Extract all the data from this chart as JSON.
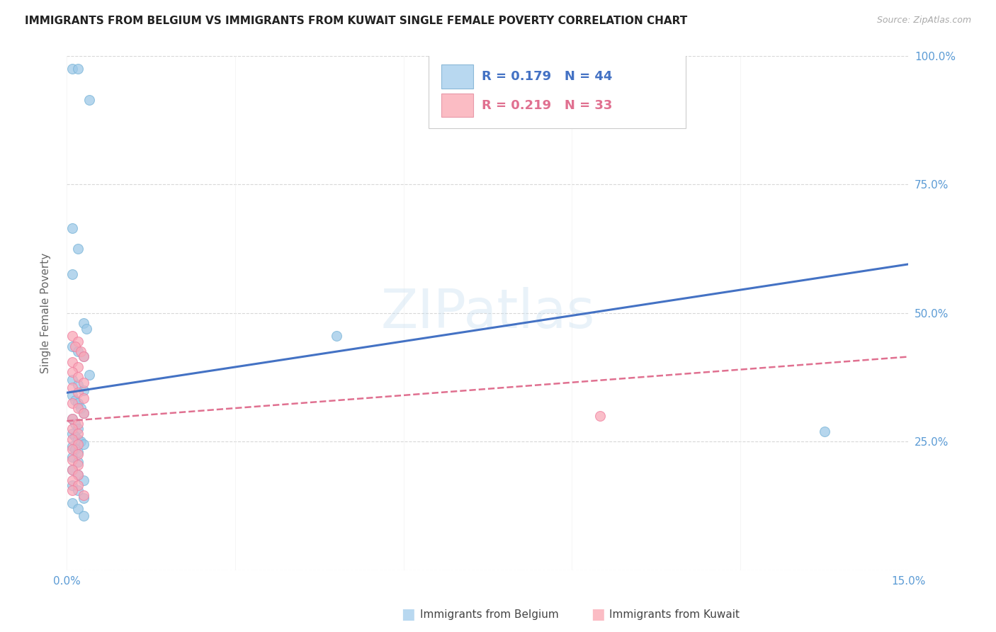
{
  "title": "IMMIGRANTS FROM BELGIUM VS IMMIGRANTS FROM KUWAIT SINGLE FEMALE POVERTY CORRELATION CHART",
  "source": "Source: ZipAtlas.com",
  "ylabel": "Single Female Poverty",
  "xlim": [
    0.0,
    0.15
  ],
  "ylim": [
    0.0,
    1.0
  ],
  "xticks": [
    0.0,
    0.03,
    0.06,
    0.09,
    0.12,
    0.15
  ],
  "xticklabels": [
    "0.0%",
    "",
    "",
    "",
    "",
    "15.0%"
  ],
  "yticks": [
    0.0,
    0.25,
    0.5,
    0.75,
    1.0
  ],
  "yticklabels_right": [
    "",
    "25.0%",
    "50.0%",
    "75.0%",
    "100.0%"
  ],
  "belgium_color": "#9ec9e8",
  "kuwait_color": "#f9a8b8",
  "belgium_edge": "#7ab5d8",
  "kuwait_edge": "#f080a0",
  "belgium_line_color": "#4472c4",
  "kuwait_line_color": "#e07090",
  "belgium_R": "0.179",
  "belgium_N": "44",
  "kuwait_R": "0.219",
  "kuwait_N": "33",
  "watermark": "ZIPatlas",
  "belgium_x": [
    0.001,
    0.002,
    0.004,
    0.001,
    0.002,
    0.001,
    0.003,
    0.0035,
    0.001,
    0.002,
    0.003,
    0.004,
    0.001,
    0.002,
    0.003,
    0.001,
    0.0015,
    0.002,
    0.0025,
    0.003,
    0.001,
    0.0015,
    0.002,
    0.001,
    0.0015,
    0.002,
    0.0025,
    0.003,
    0.001,
    0.0015,
    0.002,
    0.001,
    0.002,
    0.001,
    0.002,
    0.003,
    0.048,
    0.001,
    0.002,
    0.003,
    0.135,
    0.001,
    0.002,
    0.003
  ],
  "belgium_y": [
    0.975,
    0.975,
    0.915,
    0.665,
    0.625,
    0.575,
    0.48,
    0.47,
    0.435,
    0.425,
    0.415,
    0.38,
    0.37,
    0.36,
    0.35,
    0.34,
    0.33,
    0.325,
    0.315,
    0.305,
    0.295,
    0.285,
    0.275,
    0.265,
    0.26,
    0.255,
    0.25,
    0.245,
    0.24,
    0.235,
    0.23,
    0.22,
    0.21,
    0.195,
    0.185,
    0.175,
    0.455,
    0.165,
    0.155,
    0.14,
    0.27,
    0.13,
    0.12,
    0.105
  ],
  "kuwait_x": [
    0.001,
    0.002,
    0.0015,
    0.0025,
    0.003,
    0.001,
    0.002,
    0.001,
    0.002,
    0.003,
    0.001,
    0.002,
    0.003,
    0.001,
    0.002,
    0.003,
    0.001,
    0.002,
    0.001,
    0.002,
    0.001,
    0.002,
    0.001,
    0.002,
    0.001,
    0.002,
    0.001,
    0.002,
    0.001,
    0.002,
    0.001,
    0.095,
    0.003
  ],
  "kuwait_y": [
    0.455,
    0.445,
    0.435,
    0.425,
    0.415,
    0.405,
    0.395,
    0.385,
    0.375,
    0.365,
    0.355,
    0.345,
    0.335,
    0.325,
    0.315,
    0.305,
    0.295,
    0.285,
    0.275,
    0.265,
    0.255,
    0.245,
    0.235,
    0.225,
    0.215,
    0.205,
    0.195,
    0.185,
    0.175,
    0.165,
    0.155,
    0.3,
    0.145
  ],
  "belgium_line_x": [
    0.0,
    0.15
  ],
  "belgium_line_y": [
    0.345,
    0.595
  ],
  "kuwait_line_x": [
    0.0,
    0.15
  ],
  "kuwait_line_y": [
    0.29,
    0.415
  ],
  "background_color": "#ffffff",
  "grid_color": "#d8d8d8",
  "axis_tick_color": "#5b9bd5",
  "legend_rect_color_belgium": "#b8d8f0",
  "legend_rect_color_kuwait": "#fbbcc4",
  "legend_rect_edge_belgium": "#8ab8d8",
  "legend_rect_edge_kuwait": "#e898a8"
}
